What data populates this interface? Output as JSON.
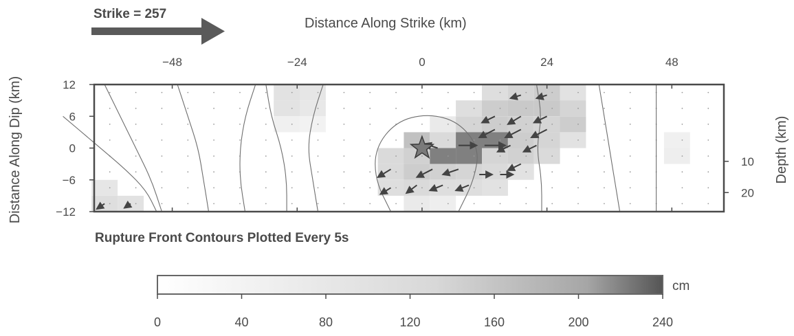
{
  "header": {
    "strike_label": "Strike = 257",
    "top_axis_title": "Distance Along Strike (km)"
  },
  "chart_data": {
    "type": "heatmap",
    "title": "",
    "xlabel": "Distance Along Strike (km)",
    "ylabel": "Distance Along Dip (km)",
    "y2label": "Depth (km)",
    "xlim": [
      -63,
      58
    ],
    "ylim": [
      -12,
      12
    ],
    "x_ticks": [
      -48,
      -24,
      0,
      24,
      48
    ],
    "y_ticks": [
      12,
      6,
      0,
      -6,
      -12
    ],
    "depth_ticks": [
      10,
      20
    ],
    "depth_tick_y": [
      -2.5,
      -8.4
    ],
    "hypocenter": {
      "x": 0,
      "y": 0
    },
    "cell_size_km": {
      "x": 5,
      "y": 3
    },
    "slip_cells_cm": [
      {
        "x": -26,
        "y": 10.5,
        "slip": 30
      },
      {
        "x": -21,
        "y": 10.5,
        "slip": 25
      },
      {
        "x": -26,
        "y": 7.5,
        "slip": 28
      },
      {
        "x": -21,
        "y": 7.5,
        "slip": 22
      },
      {
        "x": -26,
        "y": 4.5,
        "slip": 12
      },
      {
        "x": -21,
        "y": 4.5,
        "slip": 10
      },
      {
        "x": 14,
        "y": 10.5,
        "slip": 35
      },
      {
        "x": 19,
        "y": 10.5,
        "slip": 45
      },
      {
        "x": 24,
        "y": 10.5,
        "slip": 55
      },
      {
        "x": 29,
        "y": 10.5,
        "slip": 30
      },
      {
        "x": 9,
        "y": 7.5,
        "slip": 35
      },
      {
        "x": 14,
        "y": 7.5,
        "slip": 55
      },
      {
        "x": 19,
        "y": 7.5,
        "slip": 60
      },
      {
        "x": 24,
        "y": 7.5,
        "slip": 60
      },
      {
        "x": 29,
        "y": 7.5,
        "slip": 45
      },
      {
        "x": 4,
        "y": 4.5,
        "slip": 20
      },
      {
        "x": 9,
        "y": 4.5,
        "slip": 45
      },
      {
        "x": 14,
        "y": 4.5,
        "slip": 55
      },
      {
        "x": 19,
        "y": 4.5,
        "slip": 50
      },
      {
        "x": 24,
        "y": 4.5,
        "slip": 45
      },
      {
        "x": 29,
        "y": 4.5,
        "slip": 55
      },
      {
        "x": -1,
        "y": 1.5,
        "slip": 70
      },
      {
        "x": 4,
        "y": 1.5,
        "slip": 40
      },
      {
        "x": 9,
        "y": 1.5,
        "slip": 150
      },
      {
        "x": 14,
        "y": 1.5,
        "slip": 150
      },
      {
        "x": 19,
        "y": 1.5,
        "slip": 55
      },
      {
        "x": 24,
        "y": 1.5,
        "slip": 45
      },
      {
        "x": 29,
        "y": 1.5,
        "slip": 30
      },
      {
        "x": -6,
        "y": -1.5,
        "slip": 40
      },
      {
        "x": -1,
        "y": -1.5,
        "slip": 50
      },
      {
        "x": 4,
        "y": -1.5,
        "slip": 150
      },
      {
        "x": 9,
        "y": -1.5,
        "slip": 150
      },
      {
        "x": 14,
        "y": -1.5,
        "slip": 45
      },
      {
        "x": 19,
        "y": -1.5,
        "slip": 50
      },
      {
        "x": 24,
        "y": -1.5,
        "slip": 40
      },
      {
        "x": -6,
        "y": -4.5,
        "slip": 40
      },
      {
        "x": -1,
        "y": -4.5,
        "slip": 55
      },
      {
        "x": 4,
        "y": -4.5,
        "slip": 50
      },
      {
        "x": 9,
        "y": -4.5,
        "slip": 45
      },
      {
        "x": 14,
        "y": -4.5,
        "slip": 40
      },
      {
        "x": 19,
        "y": -4.5,
        "slip": 30
      },
      {
        "x": -6,
        "y": -7.5,
        "slip": 35
      },
      {
        "x": -1,
        "y": -7.5,
        "slip": 40
      },
      {
        "x": 4,
        "y": -7.5,
        "slip": 35
      },
      {
        "x": 9,
        "y": -7.5,
        "slip": 35
      },
      {
        "x": 14,
        "y": -7.5,
        "slip": 30
      },
      {
        "x": -1,
        "y": -10.5,
        "slip": 20
      },
      {
        "x": 4,
        "y": -10.5,
        "slip": 15
      },
      {
        "x": -61,
        "y": -7.5,
        "slip": 25
      },
      {
        "x": -61,
        "y": -10.5,
        "slip": 35
      },
      {
        "x": -56,
        "y": -10.5,
        "slip": 30
      },
      {
        "x": 49,
        "y": -1.5,
        "slip": 15
      },
      {
        "x": 49,
        "y": 1.5,
        "slip": 12
      }
    ],
    "rake_vectors": [
      {
        "x": 3,
        "y": 0,
        "dx": 2.5,
        "dy": -0.8
      },
      {
        "x": 7,
        "y": 0.5,
        "dx": -3.5,
        "dy": 0
      },
      {
        "x": 12,
        "y": 0.5,
        "dx": -4,
        "dy": 0
      },
      {
        "x": 2,
        "y": -4,
        "dx": 3,
        "dy": 1.5
      },
      {
        "x": 7,
        "y": -4,
        "dx": 3,
        "dy": 1
      },
      {
        "x": -6,
        "y": -4,
        "dx": 2.5,
        "dy": 1.5
      },
      {
        "x": -1,
        "y": -7,
        "dx": 2,
        "dy": 1.5
      },
      {
        "x": 4,
        "y": -7,
        "dx": 2.5,
        "dy": 1
      },
      {
        "x": 9,
        "y": -7,
        "dx": 2.5,
        "dy": 1
      },
      {
        "x": -6,
        "y": -7.5,
        "dx": 2,
        "dy": 1.2
      },
      {
        "x": 14,
        "y": 6,
        "dx": 2.5,
        "dy": 1.2
      },
      {
        "x": 19,
        "y": 6,
        "dx": 2.5,
        "dy": 1.5
      },
      {
        "x": 24,
        "y": 6,
        "dx": 2.5,
        "dy": 1.2
      },
      {
        "x": 14,
        "y": 3.5,
        "dx": 3,
        "dy": 1.5
      },
      {
        "x": 19,
        "y": 3.5,
        "dx": 3,
        "dy": 1.5
      },
      {
        "x": 24,
        "y": 3.5,
        "dx": 3,
        "dy": 1.5
      },
      {
        "x": 17,
        "y": 0.5,
        "dx": 2.5,
        "dy": 1.2
      },
      {
        "x": 22,
        "y": 0.5,
        "dx": 2.5,
        "dy": 1.2
      },
      {
        "x": 19,
        "y": -3,
        "dx": 2.5,
        "dy": 1.2
      },
      {
        "x": 19,
        "y": 10,
        "dx": 2,
        "dy": 0.6
      },
      {
        "x": 24,
        "y": 10,
        "dx": 2,
        "dy": 0.6
      },
      {
        "x": -61,
        "y": -10.5,
        "dx": 1.5,
        "dy": 1
      },
      {
        "x": -56,
        "y": -10.5,
        "dx": 1.2,
        "dy": 0.8
      },
      {
        "x": 11,
        "y": -5,
        "dx": -2.5,
        "dy": 0
      },
      {
        "x": 15,
        "y": -5,
        "dx": -2.5,
        "dy": 0
      }
    ],
    "rupture_contours": [
      [
        [
          -61,
          12
        ],
        [
          -58,
          6
        ],
        [
          -55,
          0
        ],
        [
          -52,
          -6
        ],
        [
          -50,
          -12
        ]
      ],
      [
        [
          -69,
          6
        ],
        [
          -63,
          1
        ],
        [
          -57,
          -4
        ],
        [
          -53,
          -8
        ],
        [
          -51,
          -12
        ]
      ],
      [
        [
          -47,
          12
        ],
        [
          -45,
          6
        ],
        [
          -43,
          0
        ],
        [
          -42,
          -6
        ],
        [
          -41,
          -12
        ]
      ],
      [
        [
          -32,
          12
        ],
        [
          -34,
          6
        ],
        [
          -35,
          0
        ],
        [
          -35,
          -6
        ],
        [
          -34,
          -12
        ]
      ],
      [
        [
          -30,
          12
        ],
        [
          -29,
          6
        ],
        [
          -27,
          0
        ],
        [
          -26,
          -6
        ],
        [
          -26,
          -12
        ]
      ],
      [
        [
          -19,
          12
        ],
        [
          -21,
          6
        ],
        [
          -22,
          0
        ],
        [
          -21,
          -6
        ],
        [
          -20,
          -12
        ]
      ],
      [
        [
          -6,
          -12
        ],
        [
          -9,
          -6
        ],
        [
          -9,
          0
        ],
        [
          -5,
          5
        ],
        [
          1,
          6.5
        ],
        [
          7,
          5
        ],
        [
          11,
          0
        ],
        [
          10,
          -6
        ],
        [
          7,
          -12
        ]
      ],
      [
        [
          22,
          12
        ],
        [
          23,
          6
        ],
        [
          22,
          0
        ],
        [
          23,
          -6
        ],
        [
          23,
          -12
        ]
      ],
      [
        [
          34,
          12
        ],
        [
          35,
          6
        ],
        [
          36,
          0
        ],
        [
          37,
          -6
        ],
        [
          38,
          -12
        ]
      ],
      [
        [
          45,
          12
        ],
        [
          45,
          6
        ],
        [
          45,
          0
        ],
        [
          45,
          -6
        ],
        [
          45,
          -12
        ]
      ]
    ],
    "contour_note": "Rupture Front Contours Plotted Every 5s",
    "colorbar": {
      "unit": "cm",
      "min": 0,
      "max": 240,
      "ticks": [
        0,
        40,
        80,
        120,
        160,
        200,
        240
      ]
    }
  }
}
